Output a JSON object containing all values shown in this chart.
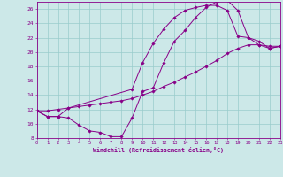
{
  "xlabel": "Windchill (Refroidissement éolien,°C)",
  "background_color": "#cce8e8",
  "grid_color": "#99cccc",
  "line_color": "#880088",
  "xlim": [
    0,
    23
  ],
  "ylim": [
    8,
    27
  ],
  "xticks": [
    0,
    1,
    2,
    3,
    4,
    5,
    6,
    7,
    8,
    9,
    10,
    11,
    12,
    13,
    14,
    15,
    16,
    17,
    18,
    19,
    20,
    21,
    22,
    23
  ],
  "yticks": [
    8,
    10,
    12,
    14,
    16,
    18,
    20,
    22,
    24,
    26
  ],
  "curve1_x": [
    0,
    1,
    2,
    3,
    4,
    5,
    6,
    7,
    8,
    9,
    10,
    11,
    12,
    13,
    14,
    15,
    16,
    17,
    18,
    19,
    20,
    21,
    22,
    23
  ],
  "curve1_y": [
    11.8,
    11.0,
    11.0,
    10.8,
    9.8,
    9.0,
    8.8,
    8.2,
    8.2,
    10.8,
    14.5,
    15.0,
    18.5,
    21.5,
    23.0,
    24.8,
    26.2,
    27.0,
    27.2,
    25.8,
    22.0,
    21.0,
    20.5,
    20.8
  ],
  "curve2_x": [
    0,
    1,
    2,
    3,
    4,
    5,
    6,
    7,
    8,
    9,
    10,
    11,
    12,
    13,
    14,
    15,
    16,
    17,
    18,
    19,
    20,
    21,
    22,
    23
  ],
  "curve2_y": [
    11.8,
    11.8,
    12.0,
    12.2,
    12.4,
    12.6,
    12.8,
    13.0,
    13.2,
    13.5,
    14.0,
    14.5,
    15.2,
    15.8,
    16.5,
    17.2,
    18.0,
    18.8,
    19.8,
    20.5,
    21.0,
    21.0,
    20.8,
    20.8
  ],
  "curve3_x": [
    0,
    1,
    2,
    3,
    9,
    10,
    11,
    12,
    13,
    14,
    15,
    16,
    17,
    18,
    19,
    20,
    21,
    22,
    23
  ],
  "curve3_y": [
    11.8,
    11.0,
    11.0,
    12.2,
    14.8,
    18.5,
    21.2,
    23.2,
    24.8,
    25.8,
    26.2,
    26.5,
    26.5,
    25.8,
    22.2,
    22.0,
    21.5,
    20.5,
    20.8
  ]
}
